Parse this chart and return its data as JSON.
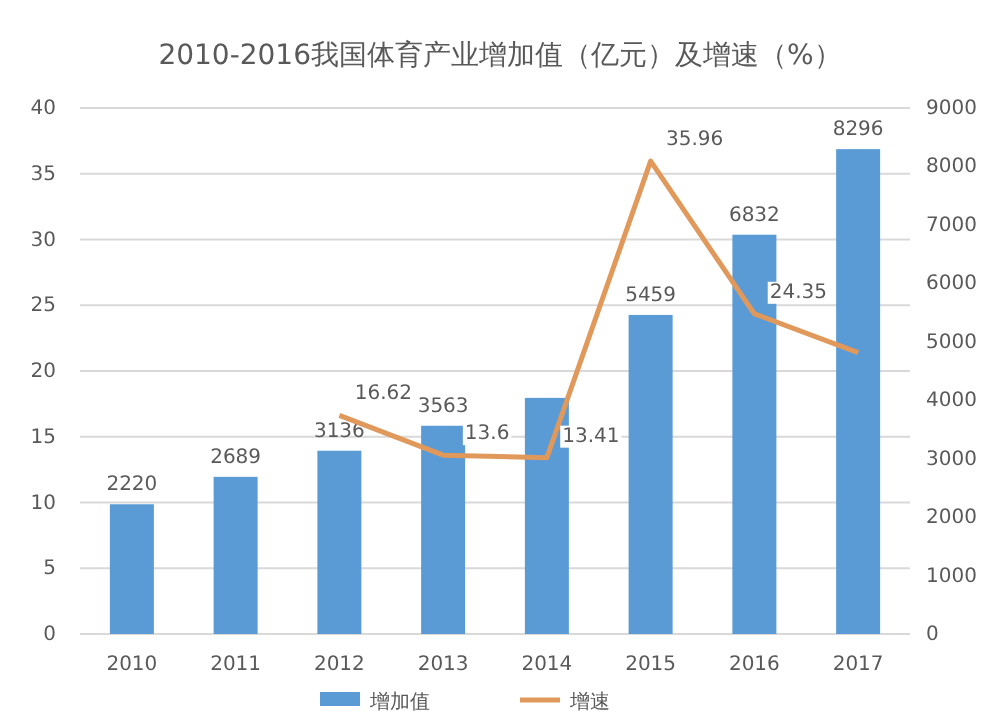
{
  "chart_data": {
    "type": "bar",
    "title": "2010-2016我国体育产业增加值（亿元）及增速（%）",
    "categories": [
      "2010",
      "2011",
      "2012",
      "2013",
      "2014",
      "2015",
      "2016",
      "2017"
    ],
    "series": [
      {
        "name": "增加值",
        "axis": "y2",
        "color": "#5b9bd5",
        "values": [
          2220,
          2689,
          3136,
          3563,
          4040,
          5459,
          6832,
          8296
        ],
        "value_labels": [
          "2220",
          "2689",
          "3136",
          "3563",
          null,
          "5459",
          "6832",
          "8296"
        ]
      },
      {
        "name": "增速",
        "type": "line",
        "color": "#e0995a",
        "values": [
          null,
          null,
          16.62,
          13.6,
          13.41,
          35.96,
          24.35,
          21.4
        ],
        "value_labels": [
          null,
          null,
          "16.62",
          "13.6",
          "13.41",
          "35.96",
          "24.35",
          null
        ]
      }
    ],
    "ylim": [
      0,
      40
    ],
    "yticks": [
      0,
      5,
      10,
      15,
      20,
      25,
      30,
      35,
      40
    ],
    "y2lim": [
      0,
      9000
    ],
    "y2ticks": [
      0,
      1000,
      2000,
      3000,
      4000,
      5000,
      6000,
      7000,
      8000,
      9000
    ],
    "grid": "y",
    "legend": "bottom"
  }
}
